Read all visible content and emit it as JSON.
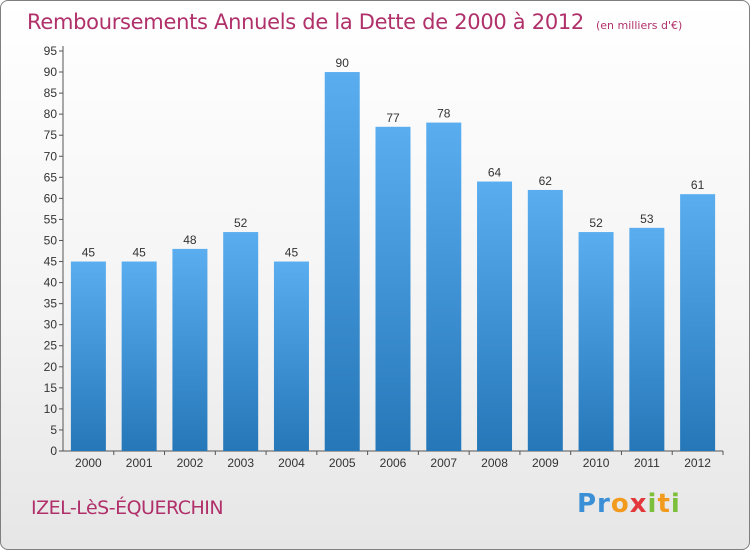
{
  "title": "Remboursements Annuels de la Dette de 2000 à 2012",
  "unit_note": "(en milliers d'€)",
  "city": "IZEL-LèS-ÉQUERCHIN",
  "logo": {
    "p1": "Pr",
    "p2": "o",
    "p3": "x",
    "p4": "i",
    "p5": "t",
    "p6": "i"
  },
  "colors": {
    "title": "#b0306a",
    "bar_top": "#5aaef0",
    "bar_bottom": "#2577b8"
  },
  "chart_data": {
    "type": "bar",
    "title": "Remboursements Annuels de la Dette de 2000 à 2012",
    "categories": [
      "2000",
      "2001",
      "2002",
      "2003",
      "2004",
      "2005",
      "2006",
      "2007",
      "2008",
      "2009",
      "2010",
      "2011",
      "2012"
    ],
    "values": [
      45,
      45,
      48,
      52,
      45,
      90,
      77,
      78,
      64,
      62,
      52,
      53,
      61
    ],
    "ylim": [
      0,
      95
    ],
    "yticks": [
      0,
      5,
      10,
      15,
      20,
      25,
      30,
      35,
      40,
      45,
      50,
      55,
      60,
      65,
      70,
      75,
      80,
      85,
      90,
      95
    ],
    "grid": false,
    "data_labels": true
  }
}
